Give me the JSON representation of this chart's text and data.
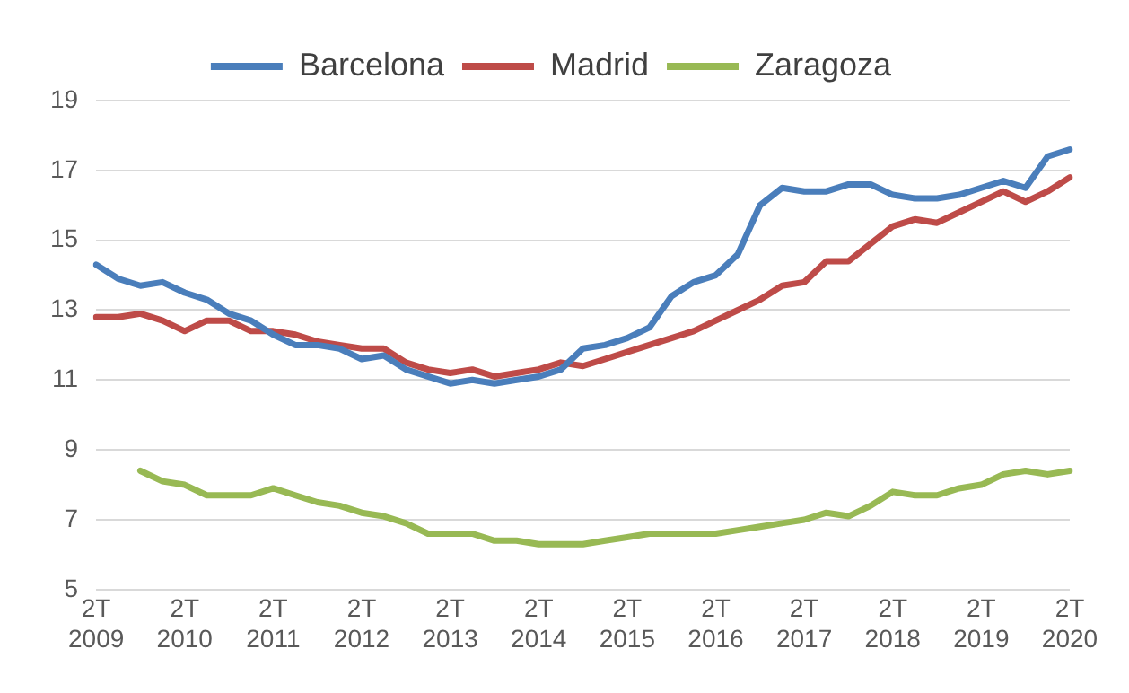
{
  "chart_data": {
    "type": "line",
    "categories": [
      "2T\n2009",
      null,
      null,
      null,
      "2T\n2010",
      null,
      null,
      null,
      "2T\n2011",
      null,
      null,
      null,
      "2T\n2012",
      null,
      null,
      null,
      "2T\n2013",
      null,
      null,
      null,
      "2T\n2014",
      null,
      null,
      null,
      "2T\n2015",
      null,
      null,
      null,
      "2T\n2016",
      null,
      null,
      null,
      "2T\n2017",
      null,
      null,
      null,
      "2T\n2018",
      null,
      null,
      null,
      "2T\n2019",
      null,
      null,
      null,
      "2T\n2020"
    ],
    "series": [
      {
        "name": "Barcelona",
        "color": "#4a7ebb",
        "values": [
          14.3,
          13.9,
          13.7,
          13.8,
          13.5,
          13.3,
          12.9,
          12.7,
          12.3,
          12.0,
          12.0,
          11.9,
          11.6,
          11.7,
          11.3,
          11.1,
          10.9,
          11.0,
          10.9,
          11.0,
          11.1,
          11.3,
          11.9,
          12.0,
          12.2,
          12.5,
          13.4,
          13.8,
          14.0,
          14.6,
          16.0,
          16.5,
          16.4,
          16.4,
          16.6,
          16.6,
          16.3,
          16.2,
          16.2,
          16.3,
          16.5,
          16.7,
          16.5,
          17.4,
          17.6
        ]
      },
      {
        "name": "Madrid",
        "color": "#be4b48",
        "values": [
          12.8,
          12.8,
          12.9,
          12.7,
          12.4,
          12.7,
          12.7,
          12.4,
          12.4,
          12.3,
          12.1,
          12.0,
          11.9,
          11.9,
          11.5,
          11.3,
          11.2,
          11.3,
          11.1,
          11.2,
          11.3,
          11.5,
          11.4,
          11.6,
          11.8,
          12.0,
          12.2,
          12.4,
          12.7,
          13.0,
          13.3,
          13.7,
          13.8,
          14.4,
          14.4,
          14.9,
          15.4,
          15.6,
          15.5,
          15.8,
          16.1,
          16.4,
          16.1,
          16.4,
          16.8
        ]
      },
      {
        "name": "Zaragoza",
        "color": "#98b954",
        "values": [
          null,
          null,
          8.4,
          8.1,
          8.0,
          7.7,
          7.7,
          7.7,
          7.9,
          7.7,
          7.5,
          7.4,
          7.2,
          7.1,
          6.9,
          6.6,
          6.6,
          6.6,
          6.4,
          6.4,
          6.3,
          6.3,
          6.3,
          6.4,
          6.5,
          6.6,
          6.6,
          6.6,
          6.6,
          6.7,
          6.8,
          6.9,
          7.0,
          7.2,
          7.1,
          7.4,
          7.8,
          7.7,
          7.7,
          7.9,
          8.0,
          8.3,
          8.4,
          8.3,
          8.4
        ]
      }
    ],
    "ylim": [
      5,
      19
    ],
    "yticks": [
      5,
      7,
      9,
      11,
      13,
      15,
      17,
      19
    ],
    "grid": "y",
    "legend": "top",
    "marker": "none",
    "line_style": "solid"
  }
}
